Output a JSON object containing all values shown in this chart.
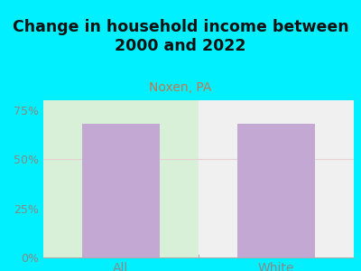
{
  "title": "Change in household income between\n2000 and 2022",
  "subtitle": "Noxen, PA",
  "categories": [
    "All",
    "White"
  ],
  "values": [
    68,
    68
  ],
  "bar_color": "#c4a8d4",
  "title_fontsize": 12.5,
  "subtitle_fontsize": 10,
  "subtitle_color": "#c07850",
  "tick_label_color": "#888888",
  "background_color": "#00f0ff",
  "plot_bg_gradient_left": "#d8f0d8",
  "plot_bg_gradient_right": "#f0f0f0",
  "ylim": [
    0,
    80
  ],
  "yticks": [
    0,
    25,
    50,
    75
  ],
  "ytick_labels": [
    "0%",
    "25%",
    "50%",
    "75%"
  ],
  "grid_color": "#e8d0d0",
  "bar_width": 0.5,
  "title_color": "#111111"
}
